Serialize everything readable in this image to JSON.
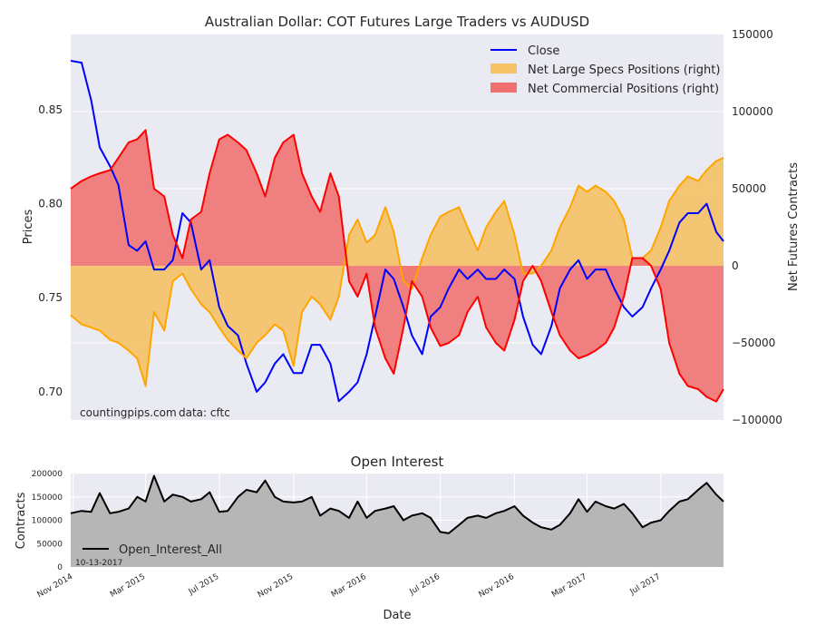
{
  "figure": {
    "source_note": "countingpips.com",
    "data_note": "data: cftc"
  },
  "chart_data": [
    {
      "type": "line",
      "title": "Australian Dollar: COT Futures Large Traders vs AUDUSD",
      "ylabel": "Prices",
      "ylabel_right": "Net Futures Contracts",
      "ylim": [
        0.685,
        0.89
      ],
      "yticks": [
        0.7,
        0.75,
        0.8,
        0.85
      ],
      "ytick_labels": [
        "0.70",
        "0.75",
        "0.80",
        "0.85"
      ],
      "ylim_right": [
        -100000,
        150000
      ],
      "yticks_right": [
        -100000,
        -50000,
        0,
        50000,
        100000,
        150000
      ],
      "ytick_labels_right": [
        "−100000",
        "−50000",
        "0",
        "50000",
        "100000",
        "150000"
      ],
      "xlim": [
        "2014-10-28",
        "2017-10-13"
      ],
      "grid": true,
      "legend_position": "top-right",
      "legend": [
        "Close",
        "Net Large Specs Positions (right)",
        "Net Commercial Positions (right)"
      ],
      "colors": {
        "close": "#0000ff",
        "specs": "#ffa500",
        "commercial": "#ff0000",
        "background": "#eaeaf2",
        "specs_fill": "#f5c266",
        "commercial_fill": "#f07070"
      },
      "series": [
        {
          "name": "Close",
          "axis": "left",
          "x": [
            "2014-10-28",
            "2014-11-15",
            "2014-12-01",
            "2014-12-15",
            "2015-01-01",
            "2015-01-15",
            "2015-02-01",
            "2015-02-15",
            "2015-03-01",
            "2015-03-15",
            "2015-04-01",
            "2015-04-15",
            "2015-05-01",
            "2015-05-15",
            "2015-06-01",
            "2015-06-15",
            "2015-07-01",
            "2015-07-15",
            "2015-08-01",
            "2015-08-15",
            "2015-09-01",
            "2015-09-15",
            "2015-10-01",
            "2015-10-15",
            "2015-11-01",
            "2015-11-15",
            "2015-12-01",
            "2015-12-15",
            "2016-01-01",
            "2016-01-15",
            "2016-02-01",
            "2016-02-15",
            "2016-03-01",
            "2016-03-15",
            "2016-04-01",
            "2016-04-15",
            "2016-05-01",
            "2016-05-15",
            "2016-06-01",
            "2016-06-15",
            "2016-07-01",
            "2016-07-15",
            "2016-08-01",
            "2016-08-15",
            "2016-09-01",
            "2016-09-15",
            "2016-10-01",
            "2016-10-15",
            "2016-11-01",
            "2016-11-15",
            "2016-12-01",
            "2016-12-15",
            "2017-01-01",
            "2017-01-15",
            "2017-02-01",
            "2017-02-15",
            "2017-03-01",
            "2017-03-15",
            "2017-04-01",
            "2017-04-15",
            "2017-05-01",
            "2017-05-15",
            "2017-06-01",
            "2017-06-15",
            "2017-07-01",
            "2017-07-15",
            "2017-08-01",
            "2017-08-15",
            "2017-09-01",
            "2017-09-15",
            "2017-10-01",
            "2017-10-13"
          ],
          "values": [
            0.876,
            0.875,
            0.855,
            0.83,
            0.82,
            0.81,
            0.778,
            0.775,
            0.78,
            0.765,
            0.765,
            0.77,
            0.795,
            0.79,
            0.765,
            0.77,
            0.745,
            0.735,
            0.73,
            0.715,
            0.7,
            0.705,
            0.715,
            0.72,
            0.71,
            0.71,
            0.725,
            0.725,
            0.715,
            0.695,
            0.7,
            0.705,
            0.72,
            0.74,
            0.765,
            0.76,
            0.745,
            0.73,
            0.72,
            0.74,
            0.745,
            0.755,
            0.765,
            0.76,
            0.765,
            0.76,
            0.76,
            0.765,
            0.76,
            0.74,
            0.725,
            0.72,
            0.735,
            0.755,
            0.765,
            0.77,
            0.76,
            0.765,
            0.765,
            0.755,
            0.745,
            0.74,
            0.745,
            0.755,
            0.765,
            0.775,
            0.79,
            0.795,
            0.795,
            0.8,
            0.785,
            0.78
          ]
        },
        {
          "name": "Net Large Specs Positions (right)",
          "axis": "right",
          "x": [
            "2014-10-28",
            "2014-11-15",
            "2014-12-01",
            "2014-12-15",
            "2015-01-01",
            "2015-01-15",
            "2015-02-01",
            "2015-02-15",
            "2015-03-01",
            "2015-03-15",
            "2015-04-01",
            "2015-04-15",
            "2015-05-01",
            "2015-05-15",
            "2015-06-01",
            "2015-06-15",
            "2015-07-01",
            "2015-07-15",
            "2015-08-01",
            "2015-08-15",
            "2015-09-01",
            "2015-09-15",
            "2015-10-01",
            "2015-10-15",
            "2015-11-01",
            "2015-11-15",
            "2015-12-01",
            "2015-12-15",
            "2016-01-01",
            "2016-01-15",
            "2016-02-01",
            "2016-02-15",
            "2016-03-01",
            "2016-03-15",
            "2016-04-01",
            "2016-04-15",
            "2016-05-01",
            "2016-05-15",
            "2016-06-01",
            "2016-06-15",
            "2016-07-01",
            "2016-07-15",
            "2016-08-01",
            "2016-08-15",
            "2016-09-01",
            "2016-09-15",
            "2016-10-01",
            "2016-10-15",
            "2016-11-01",
            "2016-11-15",
            "2016-12-01",
            "2016-12-15",
            "2017-01-01",
            "2017-01-15",
            "2017-02-01",
            "2017-02-15",
            "2017-03-01",
            "2017-03-15",
            "2017-04-01",
            "2017-04-15",
            "2017-05-01",
            "2017-05-15",
            "2017-06-01",
            "2017-06-15",
            "2017-07-01",
            "2017-07-15",
            "2017-08-01",
            "2017-08-15",
            "2017-09-01",
            "2017-09-15",
            "2017-10-01",
            "2017-10-13"
          ],
          "values": [
            -32000,
            -38000,
            -40000,
            -42000,
            -48000,
            -50000,
            -55000,
            -60000,
            -78000,
            -30000,
            -42000,
            -10000,
            -5000,
            -15000,
            -25000,
            -30000,
            -40000,
            -48000,
            -55000,
            -60000,
            -50000,
            -45000,
            -38000,
            -42000,
            -65000,
            -30000,
            -20000,
            -25000,
            -35000,
            -20000,
            20000,
            30000,
            15000,
            20000,
            38000,
            22000,
            -10000,
            -15000,
            5000,
            20000,
            32000,
            35000,
            38000,
            25000,
            10000,
            25000,
            35000,
            42000,
            20000,
            -5000,
            -5000,
            0,
            10000,
            25000,
            38000,
            52000,
            48000,
            52000,
            48000,
            42000,
            30000,
            5000,
            5000,
            10000,
            25000,
            42000,
            52000,
            58000,
            55000,
            62000,
            68000,
            70000
          ]
        },
        {
          "name": "Net Commercial Positions (right)",
          "axis": "right",
          "x": [
            "2014-10-28",
            "2014-11-15",
            "2014-12-01",
            "2014-12-15",
            "2015-01-01",
            "2015-01-15",
            "2015-02-01",
            "2015-02-15",
            "2015-03-01",
            "2015-03-15",
            "2015-04-01",
            "2015-04-15",
            "2015-05-01",
            "2015-05-15",
            "2015-06-01",
            "2015-06-15",
            "2015-07-01",
            "2015-07-15",
            "2015-08-01",
            "2015-08-15",
            "2015-09-01",
            "2015-09-15",
            "2015-10-01",
            "2015-10-15",
            "2015-11-01",
            "2015-11-15",
            "2015-12-01",
            "2015-12-15",
            "2016-01-01",
            "2016-01-15",
            "2016-02-01",
            "2016-02-15",
            "2016-03-01",
            "2016-03-15",
            "2016-04-01",
            "2016-04-15",
            "2016-05-01",
            "2016-05-15",
            "2016-06-01",
            "2016-06-15",
            "2016-07-01",
            "2016-07-15",
            "2016-08-01",
            "2016-08-15",
            "2016-09-01",
            "2016-09-15",
            "2016-10-01",
            "2016-10-15",
            "2016-11-01",
            "2016-11-15",
            "2016-12-01",
            "2016-12-15",
            "2017-01-01",
            "2017-01-15",
            "2017-02-01",
            "2017-02-15",
            "2017-03-01",
            "2017-03-15",
            "2017-04-01",
            "2017-04-15",
            "2017-05-01",
            "2017-05-15",
            "2017-06-01",
            "2017-06-15",
            "2017-07-01",
            "2017-07-15",
            "2017-08-01",
            "2017-08-15",
            "2017-09-01",
            "2017-09-15",
            "2017-10-01",
            "2017-10-13"
          ],
          "values": [
            50000,
            55000,
            58000,
            60000,
            62000,
            70000,
            80000,
            82000,
            88000,
            50000,
            45000,
            20000,
            5000,
            30000,
            35000,
            60000,
            82000,
            85000,
            80000,
            75000,
            60000,
            45000,
            70000,
            80000,
            85000,
            60000,
            45000,
            35000,
            60000,
            45000,
            -10000,
            -20000,
            -5000,
            -40000,
            -60000,
            -70000,
            -40000,
            -10000,
            -20000,
            -40000,
            -52000,
            -50000,
            -45000,
            -30000,
            -20000,
            -40000,
            -50000,
            -55000,
            -35000,
            -10000,
            0,
            -10000,
            -30000,
            -45000,
            -55000,
            -60000,
            -58000,
            -55000,
            -50000,
            -40000,
            -20000,
            5000,
            5000,
            0,
            -15000,
            -50000,
            -70000,
            -78000,
            -80000,
            -85000,
            -88000,
            -80000
          ]
        }
      ]
    },
    {
      "type": "area",
      "title": "Open Interest",
      "xlabel": "Date",
      "ylabel": "Contracts",
      "ylim": [
        0,
        200000
      ],
      "yticks": [
        0,
        50000,
        100000,
        150000,
        200000
      ],
      "ytick_labels": [
        "0",
        "50000",
        "100000",
        "150000",
        "200000"
      ],
      "xlim": [
        "2014-10-28",
        "2017-10-13"
      ],
      "xticks": [
        "2014-11-01",
        "2015-03-01",
        "2015-07-01",
        "2015-11-01",
        "2016-03-01",
        "2016-07-01",
        "2016-11-01",
        "2017-03-01",
        "2017-07-01"
      ],
      "xtick_labels": [
        "Nov 2014",
        "Mar 2015",
        "Jul 2015",
        "Nov 2015",
        "Mar 2016",
        "Jul 2016",
        "Nov 2016",
        "Mar 2017",
        "Jul 2017"
      ],
      "grid": true,
      "legend_position": "bottom-left",
      "legend": [
        "Open_Interest_All"
      ],
      "date_note": "10-13-2017",
      "colors": {
        "line": "#000000",
        "fill": "#b3b3b3",
        "background": "#eaeaf2"
      },
      "series": [
        {
          "name": "Open_Interest_All",
          "x": [
            "2014-10-28",
            "2014-11-15",
            "2014-12-01",
            "2014-12-15",
            "2015-01-01",
            "2015-01-15",
            "2015-02-01",
            "2015-02-15",
            "2015-03-01",
            "2015-03-15",
            "2015-04-01",
            "2015-04-15",
            "2015-05-01",
            "2015-05-15",
            "2015-06-01",
            "2015-06-15",
            "2015-07-01",
            "2015-07-15",
            "2015-08-01",
            "2015-08-15",
            "2015-09-01",
            "2015-09-15",
            "2015-10-01",
            "2015-10-15",
            "2015-11-01",
            "2015-11-15",
            "2015-12-01",
            "2015-12-15",
            "2016-01-01",
            "2016-01-15",
            "2016-02-01",
            "2016-02-15",
            "2016-03-01",
            "2016-03-15",
            "2016-04-01",
            "2016-04-15",
            "2016-05-01",
            "2016-05-15",
            "2016-06-01",
            "2016-06-15",
            "2016-07-01",
            "2016-07-15",
            "2016-08-01",
            "2016-08-15",
            "2016-09-01",
            "2016-09-15",
            "2016-10-01",
            "2016-10-15",
            "2016-11-01",
            "2016-11-15",
            "2016-12-01",
            "2016-12-15",
            "2017-01-01",
            "2017-01-15",
            "2017-02-01",
            "2017-02-15",
            "2017-03-01",
            "2017-03-15",
            "2017-04-01",
            "2017-04-15",
            "2017-05-01",
            "2017-05-15",
            "2017-06-01",
            "2017-06-15",
            "2017-07-01",
            "2017-07-15",
            "2017-08-01",
            "2017-08-15",
            "2017-09-01",
            "2017-09-15",
            "2017-10-01",
            "2017-10-13"
          ],
          "values": [
            115000,
            120000,
            118000,
            158000,
            115000,
            118000,
            125000,
            150000,
            140000,
            195000,
            140000,
            155000,
            150000,
            140000,
            145000,
            160000,
            118000,
            120000,
            150000,
            165000,
            160000,
            185000,
            150000,
            140000,
            138000,
            140000,
            150000,
            110000,
            125000,
            120000,
            105000,
            140000,
            105000,
            120000,
            125000,
            130000,
            100000,
            110000,
            115000,
            105000,
            75000,
            72000,
            90000,
            105000,
            110000,
            105000,
            115000,
            120000,
            130000,
            110000,
            95000,
            85000,
            80000,
            90000,
            115000,
            145000,
            118000,
            140000,
            130000,
            125000,
            135000,
            115000,
            85000,
            95000,
            100000,
            120000,
            140000,
            145000,
            165000,
            180000,
            155000,
            140000
          ]
        }
      ]
    }
  ]
}
